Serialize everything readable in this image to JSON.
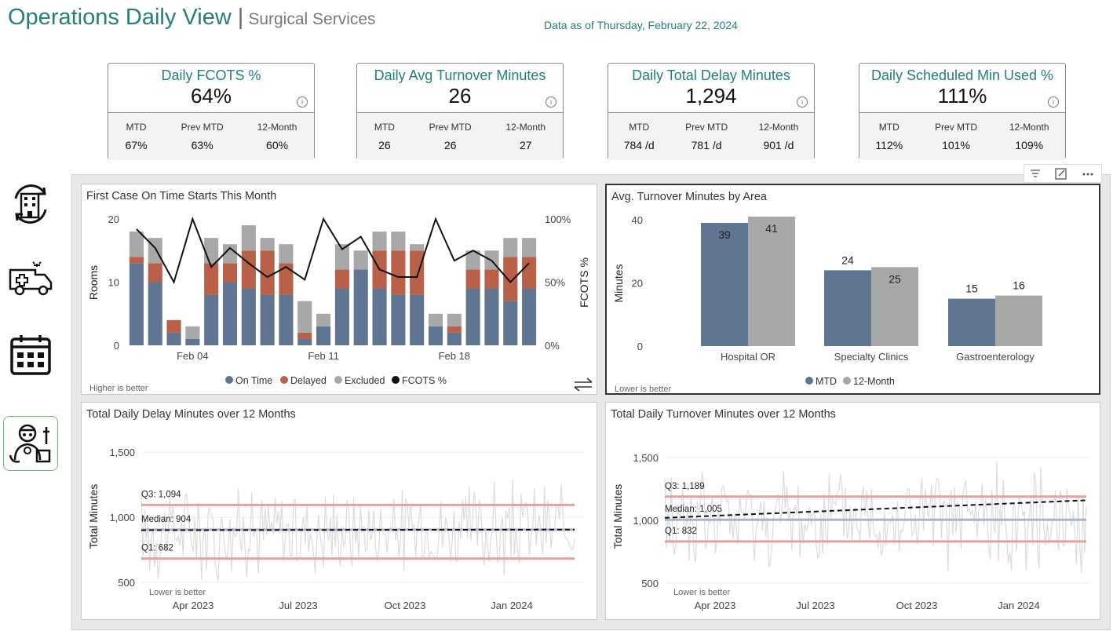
{
  "header": {
    "title": "Operations Daily View",
    "separator": "|",
    "subtitle": "Surgical Services",
    "as_of": "Data as of Thursday, February 22, 2024"
  },
  "kpis": [
    {
      "title": "Daily FCOTS %",
      "value": "64%",
      "cells": [
        {
          "label": "MTD",
          "value": "67%"
        },
        {
          "label": "Prev MTD",
          "value": "63%"
        },
        {
          "label": "12-Month",
          "value": "60%"
        }
      ]
    },
    {
      "title": "Daily Avg Turnover Minutes",
      "value": "26",
      "cells": [
        {
          "label": "MTD",
          "value": "26"
        },
        {
          "label": "Prev MTD",
          "value": "26"
        },
        {
          "label": "12-Month",
          "value": "27"
        }
      ]
    },
    {
      "title": "Daily Total Delay Minutes",
      "value": "1,294",
      "cells": [
        {
          "label": "MTD",
          "value": "784 /d"
        },
        {
          "label": "Prev MTD",
          "value": "781 /d"
        },
        {
          "label": "12-Month",
          "value": "901 /d"
        }
      ]
    },
    {
      "title": "Daily Scheduled Min Used %",
      "value": "111%",
      "cells": [
        {
          "label": "MTD",
          "value": "112%"
        },
        {
          "label": "Prev MTD",
          "value": "101%"
        },
        {
          "label": "12-Month",
          "value": "109%"
        }
      ]
    }
  ],
  "info_glyph": "i",
  "nav_icons": [
    "hospital-cycle-icon",
    "ambulance-icon",
    "calendar-icon",
    "surgeon-icon"
  ],
  "colors": {
    "teal": "#23807c",
    "blue": "#5f7591",
    "orange": "#b86048",
    "gray": "#a8a8a8",
    "line": "#111111",
    "salmon": "#e0a598"
  },
  "chart_data": [
    {
      "type": "bar",
      "title": "First Case On Time Starts This Month",
      "ylabel": "Rooms",
      "y2label": "FCOTS %",
      "ylim": [
        0,
        20
      ],
      "y_ticks": [
        "0",
        "10",
        "20"
      ],
      "y2lim": [
        0,
        100
      ],
      "y2_ticks": [
        "0%",
        "50%",
        "100%"
      ],
      "x_ticks": [
        "Feb 04",
        "Feb 11",
        "Feb 18"
      ],
      "note": "Higher is better",
      "legend": [
        "On Time",
        "Delayed",
        "Excluded",
        "FCOTS %"
      ],
      "series": [
        {
          "name": "On Time",
          "values": [
            13,
            10,
            2,
            1,
            8,
            10,
            9,
            8,
            8,
            1,
            3,
            9,
            12,
            9,
            8,
            8,
            3,
            2,
            9,
            9,
            7,
            9
          ]
        },
        {
          "name": "Delayed",
          "values": [
            1,
            3,
            2,
            0,
            5,
            3,
            6,
            7,
            5,
            1,
            0,
            3,
            0,
            6,
            7,
            7,
            0,
            1,
            3,
            3,
            7,
            5
          ]
        },
        {
          "name": "Excluded",
          "values": [
            4,
            4,
            0,
            2,
            4,
            3,
            4,
            2,
            3,
            5,
            2,
            4,
            3,
            3,
            3,
            1,
            2,
            2,
            3,
            3,
            3,
            3
          ]
        },
        {
          "name": "FCOTS %",
          "values": [
            92,
            77,
            50,
            100,
            62,
            77,
            65,
            54,
            62,
            52,
            100,
            76,
            86,
            60,
            54,
            54,
            100,
            67,
            75,
            67,
            50,
            65
          ]
        }
      ]
    },
    {
      "type": "bar",
      "title": "Avg. Turnover Minutes by Area",
      "ylabel": "Minutes",
      "ylim": [
        0,
        40
      ],
      "y_ticks": [
        "0",
        "20",
        "40"
      ],
      "categories": [
        "Hospital OR",
        "Specialty Clinics",
        "Gastroenterology"
      ],
      "note": "Lower is better",
      "legend": [
        "MTD",
        "12-Month"
      ],
      "series": [
        {
          "name": "MTD",
          "values": [
            39,
            24,
            15
          ],
          "labels": [
            "39",
            "24",
            "15"
          ]
        },
        {
          "name": "12-Month",
          "values": [
            41,
            25,
            16
          ],
          "labels": [
            "41",
            "25",
            "16"
          ]
        }
      ]
    },
    {
      "type": "line",
      "title": "Total Daily Delay Minutes over 12 Months",
      "ylabel": "Total Minutes",
      "ylim": [
        300,
        1700
      ],
      "y_ticks": [
        "500",
        "1,000",
        "1,500"
      ],
      "x_ticks": [
        "Apr 2023",
        "Jul 2023",
        "Oct 2023",
        "Jan 2024"
      ],
      "note": "Lower is better",
      "reference_lines": [
        {
          "label": "Q3: 1,094",
          "value": 1094
        },
        {
          "label": "Median: 904",
          "value": 904
        },
        {
          "label": "Q1: 682",
          "value": 682
        }
      ],
      "trend": [
        900,
        905
      ]
    },
    {
      "type": "line",
      "title": "Total Daily Turnover Minutes over 12 Months",
      "ylabel": "Total Minutes",
      "ylim": [
        300,
        1750
      ],
      "y_ticks": [
        "500",
        "1,000",
        "1,500"
      ],
      "x_ticks": [
        "Apr 2023",
        "Jul 2023",
        "Oct 2023",
        "Jan 2024"
      ],
      "note": "Lower is better",
      "reference_lines": [
        {
          "label": "Q3: 1,189",
          "value": 1189
        },
        {
          "label": "Median: 1,005",
          "value": 1005
        },
        {
          "label": "Q1: 832",
          "value": 832
        }
      ],
      "trend": [
        1020,
        1160
      ]
    }
  ]
}
